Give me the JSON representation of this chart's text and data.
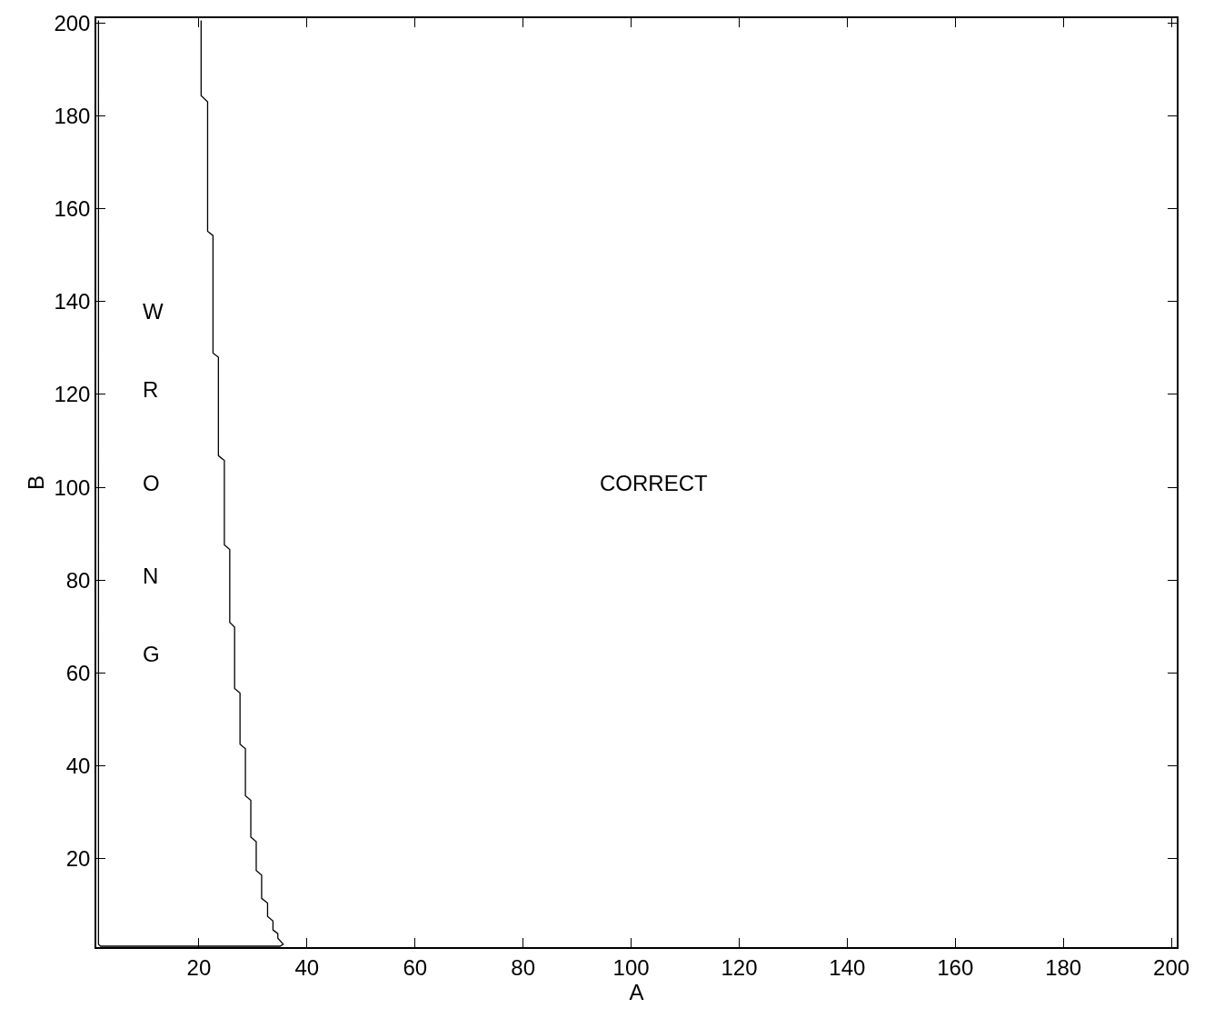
{
  "chart_data": {
    "type": "line",
    "xlabel": "A",
    "ylabel": "B",
    "x": [
      20.4,
      20.4,
      21.6,
      21.6,
      22.6,
      22.6,
      23.6,
      23.6,
      24.7,
      24.7,
      25.7,
      25.7,
      26.6,
      26.6,
      27.6,
      27.6,
      28.6,
      28.6,
      29.6,
      29.6,
      30.6,
      30.6,
      31.6,
      31.6,
      32.7,
      32.7,
      33.7,
      33.7,
      34.6,
      34.6,
      35.6,
      35,
      1.8,
      1.4,
      1.4
    ],
    "series": [
      {
        "color": "#000000",
        "values": [
          200.5,
          184.3,
          183,
          155.1,
          154.2,
          128.9,
          128,
          106.8,
          105.8,
          87.6,
          86.6,
          70.9,
          69.9,
          56.7,
          55.7,
          44.7,
          43.7,
          33.6,
          32.6,
          24.7,
          23.7,
          17.5,
          16.5,
          11.5,
          10.5,
          7.6,
          6.6,
          4.7,
          3.9,
          2.9,
          1.6,
          1.2,
          1.2,
          1.6,
          200.5
        ]
      }
    ],
    "xlim": [
      1,
      201
    ],
    "ylim": [
      1,
      201
    ],
    "xticks": [
      20,
      40,
      60,
      80,
      100,
      120,
      140,
      160,
      180,
      200
    ],
    "yticks": [
      20,
      40,
      60,
      80,
      100,
      120,
      140,
      160,
      180,
      200
    ],
    "marker": "none",
    "line_style": "solid",
    "annotations": [
      "W",
      "R",
      "O",
      "N",
      "G",
      "CORRECT"
    ]
  }
}
